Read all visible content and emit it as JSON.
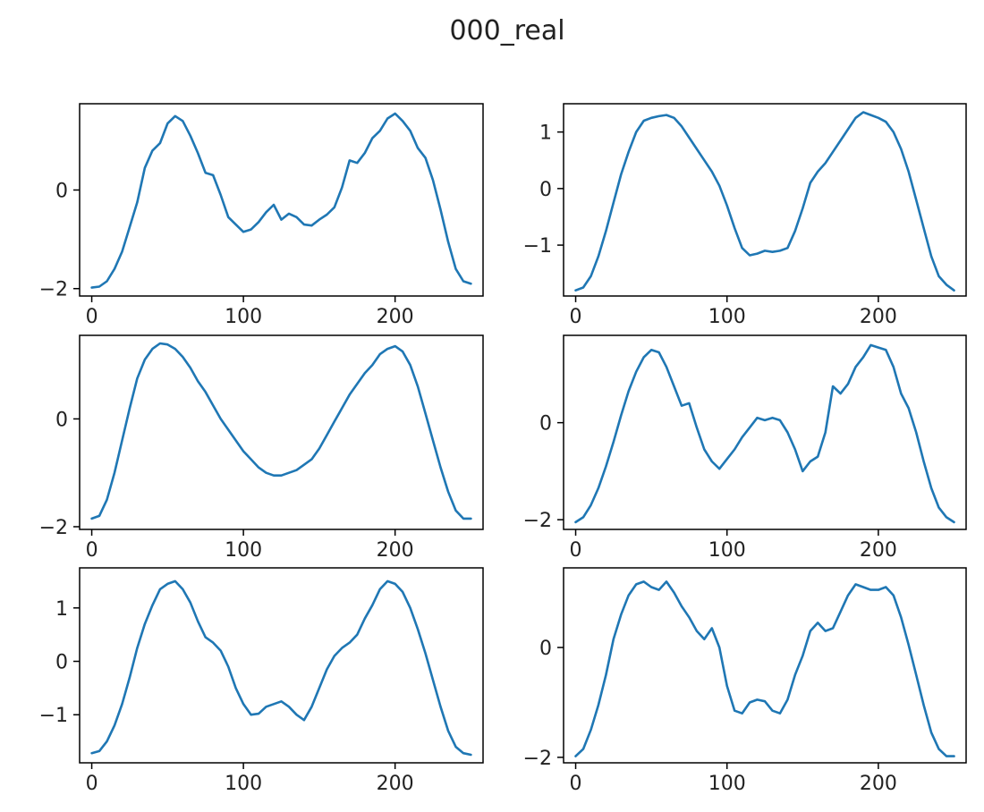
{
  "figure": {
    "title": "000_real"
  },
  "chart_data": [
    {
      "type": "line",
      "xlim": [
        -8,
        258
      ],
      "ylim": [
        -2.15,
        1.75
      ],
      "xticks": [
        0,
        100,
        200
      ],
      "yticks": [
        -2,
        0
      ],
      "grid": false,
      "color": "#1f77b4",
      "x": [
        0,
        5,
        10,
        15,
        20,
        25,
        30,
        35,
        40,
        45,
        50,
        55,
        60,
        65,
        70,
        75,
        80,
        85,
        90,
        95,
        100,
        105,
        110,
        115,
        120,
        125,
        130,
        135,
        140,
        145,
        150,
        155,
        160,
        165,
        170,
        175,
        180,
        185,
        190,
        195,
        200,
        205,
        210,
        215,
        220,
        225,
        230,
        235,
        240,
        245,
        250
      ],
      "values": [
        -1.98,
        -1.96,
        -1.85,
        -1.6,
        -1.25,
        -0.75,
        -0.25,
        0.45,
        0.8,
        0.95,
        1.35,
        1.5,
        1.4,
        1.1,
        0.75,
        0.35,
        0.3,
        -0.1,
        -0.55,
        -0.7,
        -0.85,
        -0.8,
        -0.65,
        -0.45,
        -0.3,
        -0.6,
        -0.48,
        -0.55,
        -0.7,
        -0.72,
        -0.6,
        -0.5,
        -0.35,
        0.05,
        0.6,
        0.55,
        0.75,
        1.05,
        1.2,
        1.45,
        1.55,
        1.4,
        1.2,
        0.85,
        0.65,
        0.2,
        -0.4,
        -1.05,
        -1.6,
        -1.85,
        -1.9
      ]
    },
    {
      "type": "line",
      "xlim": [
        -8,
        258
      ],
      "ylim": [
        -1.9,
        1.5
      ],
      "xticks": [
        0,
        100,
        200
      ],
      "yticks": [
        -1,
        0,
        1
      ],
      "grid": false,
      "color": "#1f77b4",
      "x": [
        0,
        5,
        10,
        15,
        20,
        25,
        30,
        35,
        40,
        45,
        50,
        55,
        60,
        65,
        70,
        75,
        80,
        85,
        90,
        95,
        100,
        105,
        110,
        115,
        120,
        125,
        130,
        135,
        140,
        145,
        150,
        155,
        160,
        165,
        170,
        175,
        180,
        185,
        190,
        195,
        200,
        205,
        210,
        215,
        220,
        225,
        230,
        235,
        240,
        245,
        250
      ],
      "values": [
        -1.8,
        -1.75,
        -1.55,
        -1.2,
        -0.75,
        -0.25,
        0.25,
        0.65,
        1.0,
        1.2,
        1.25,
        1.28,
        1.3,
        1.25,
        1.1,
        0.9,
        0.7,
        0.5,
        0.3,
        0.05,
        -0.3,
        -0.7,
        -1.05,
        -1.18,
        -1.15,
        -1.1,
        -1.12,
        -1.1,
        -1.05,
        -0.75,
        -0.35,
        0.1,
        0.3,
        0.45,
        0.65,
        0.85,
        1.05,
        1.25,
        1.35,
        1.3,
        1.25,
        1.18,
        1.0,
        0.7,
        0.3,
        -0.2,
        -0.7,
        -1.2,
        -1.55,
        -1.7,
        -1.8
      ]
    },
    {
      "type": "line",
      "xlim": [
        -8,
        258
      ],
      "ylim": [
        -2.05,
        1.55
      ],
      "xticks": [
        0,
        100,
        200
      ],
      "yticks": [
        -2,
        0
      ],
      "grid": false,
      "color": "#1f77b4",
      "x": [
        0,
        5,
        10,
        15,
        20,
        25,
        30,
        35,
        40,
        45,
        50,
        55,
        60,
        65,
        70,
        75,
        80,
        85,
        90,
        95,
        100,
        105,
        110,
        115,
        120,
        125,
        130,
        135,
        140,
        145,
        150,
        155,
        160,
        165,
        170,
        175,
        180,
        185,
        190,
        195,
        200,
        205,
        210,
        215,
        220,
        225,
        230,
        235,
        240,
        245,
        250
      ],
      "values": [
        -1.85,
        -1.8,
        -1.5,
        -1.0,
        -0.4,
        0.2,
        0.75,
        1.1,
        1.3,
        1.4,
        1.38,
        1.3,
        1.15,
        0.95,
        0.7,
        0.5,
        0.25,
        0.0,
        -0.2,
        -0.4,
        -0.6,
        -0.75,
        -0.9,
        -1.0,
        -1.05,
        -1.05,
        -1.0,
        -0.95,
        -0.85,
        -0.75,
        -0.55,
        -0.3,
        -0.05,
        0.2,
        0.45,
        0.65,
        0.85,
        1.0,
        1.2,
        1.3,
        1.35,
        1.25,
        1.0,
        0.6,
        0.1,
        -0.4,
        -0.9,
        -1.35,
        -1.7,
        -1.85,
        -1.85
      ]
    },
    {
      "type": "line",
      "xlim": [
        -8,
        258
      ],
      "ylim": [
        -2.2,
        1.8
      ],
      "xticks": [
        0,
        100,
        200
      ],
      "yticks": [
        -2,
        0
      ],
      "grid": false,
      "color": "#1f77b4",
      "x": [
        0,
        5,
        10,
        15,
        20,
        25,
        30,
        35,
        40,
        45,
        50,
        55,
        60,
        65,
        70,
        75,
        80,
        85,
        90,
        95,
        100,
        105,
        110,
        115,
        120,
        125,
        130,
        135,
        140,
        145,
        150,
        155,
        160,
        165,
        170,
        175,
        180,
        185,
        190,
        195,
        200,
        205,
        210,
        215,
        220,
        225,
        230,
        235,
        240,
        245,
        250
      ],
      "values": [
        -2.05,
        -1.95,
        -1.7,
        -1.35,
        -0.9,
        -0.4,
        0.15,
        0.65,
        1.05,
        1.35,
        1.5,
        1.45,
        1.15,
        0.75,
        0.35,
        0.4,
        -0.1,
        -0.55,
        -0.8,
        -0.95,
        -0.75,
        -0.55,
        -0.3,
        -0.1,
        0.1,
        0.05,
        0.1,
        0.05,
        -0.2,
        -0.55,
        -1.0,
        -0.8,
        -0.7,
        -0.2,
        0.75,
        0.6,
        0.8,
        1.15,
        1.35,
        1.6,
        1.55,
        1.5,
        1.15,
        0.6,
        0.3,
        -0.2,
        -0.8,
        -1.35,
        -1.75,
        -1.95,
        -2.05
      ]
    },
    {
      "type": "line",
      "xlim": [
        -8,
        258
      ],
      "ylim": [
        -1.9,
        1.75
      ],
      "xticks": [
        0,
        100,
        200
      ],
      "yticks": [
        -1,
        0,
        1
      ],
      "grid": false,
      "color": "#1f77b4",
      "x": [
        0,
        5,
        10,
        15,
        20,
        25,
        30,
        35,
        40,
        45,
        50,
        55,
        60,
        65,
        70,
        75,
        80,
        85,
        90,
        95,
        100,
        105,
        110,
        115,
        120,
        125,
        130,
        135,
        140,
        145,
        150,
        155,
        160,
        165,
        170,
        175,
        180,
        185,
        190,
        195,
        200,
        205,
        210,
        215,
        220,
        225,
        230,
        235,
        240,
        245,
        250
      ],
      "values": [
        -1.72,
        -1.68,
        -1.5,
        -1.2,
        -0.8,
        -0.3,
        0.25,
        0.7,
        1.05,
        1.35,
        1.45,
        1.5,
        1.35,
        1.1,
        0.75,
        0.45,
        0.35,
        0.2,
        -0.1,
        -0.5,
        -0.8,
        -1.0,
        -0.98,
        -0.85,
        -0.8,
        -0.75,
        -0.85,
        -1.0,
        -1.1,
        -0.85,
        -0.5,
        -0.15,
        0.1,
        0.25,
        0.35,
        0.5,
        0.8,
        1.05,
        1.35,
        1.5,
        1.45,
        1.3,
        1.0,
        0.6,
        0.15,
        -0.35,
        -0.85,
        -1.3,
        -1.6,
        -1.72,
        -1.75
      ]
    },
    {
      "type": "line",
      "xlim": [
        -8,
        258
      ],
      "ylim": [
        -2.1,
        1.45
      ],
      "xticks": [
        0,
        100,
        200
      ],
      "yticks": [
        -2,
        0
      ],
      "grid": false,
      "color": "#1f77b4",
      "x": [
        0,
        5,
        10,
        15,
        20,
        25,
        30,
        35,
        40,
        45,
        50,
        55,
        60,
        65,
        70,
        75,
        80,
        85,
        90,
        95,
        100,
        105,
        110,
        115,
        120,
        125,
        130,
        135,
        140,
        145,
        150,
        155,
        160,
        165,
        170,
        175,
        180,
        185,
        190,
        195,
        200,
        205,
        210,
        215,
        220,
        225,
        230,
        235,
        240,
        245,
        250
      ],
      "values": [
        -1.98,
        -1.85,
        -1.5,
        -1.05,
        -0.5,
        0.15,
        0.6,
        0.95,
        1.15,
        1.2,
        1.1,
        1.05,
        1.2,
        1.0,
        0.75,
        0.55,
        0.3,
        0.15,
        0.35,
        0.0,
        -0.7,
        -1.15,
        -1.2,
        -1.0,
        -0.95,
        -0.98,
        -1.15,
        -1.2,
        -0.95,
        -0.5,
        -0.15,
        0.3,
        0.45,
        0.3,
        0.35,
        0.65,
        0.95,
        1.15,
        1.1,
        1.05,
        1.05,
        1.1,
        0.95,
        0.55,
        0.05,
        -0.5,
        -1.05,
        -1.55,
        -1.85,
        -1.98,
        -1.98
      ]
    }
  ]
}
